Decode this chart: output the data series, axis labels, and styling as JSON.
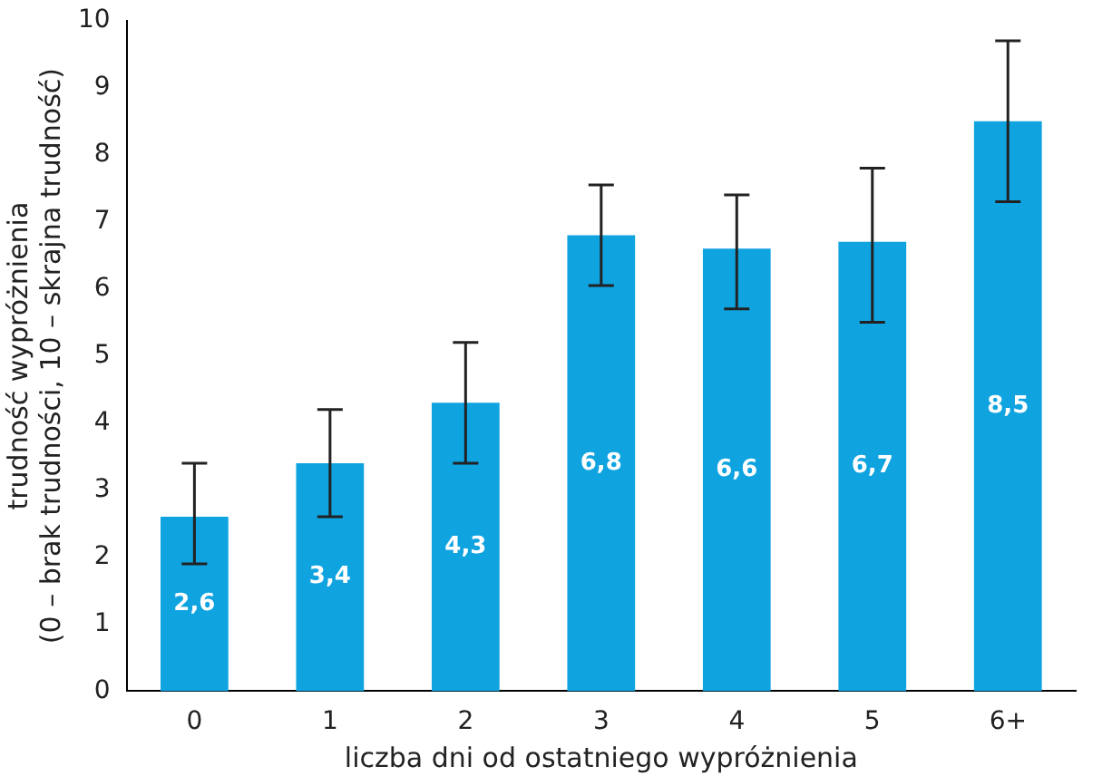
{
  "chart_data": {
    "type": "bar",
    "xlabel": "liczba dni od ostatniego wypróżnienia",
    "ylabel": "trudność wypróżnienia\n(0 – brak trudności, 10 – skrajna trudność)",
    "categories": [
      "0",
      "1",
      "2",
      "3",
      "4",
      "5",
      "6+"
    ],
    "values": [
      2.6,
      3.4,
      4.3,
      6.8,
      6.6,
      6.7,
      8.5
    ],
    "value_labels": [
      "2,6",
      "3,4",
      "4,3",
      "6,8",
      "6,6",
      "6,7",
      "8,5"
    ],
    "errors": [
      [
        1.9,
        3.4
      ],
      [
        2.6,
        4.2
      ],
      [
        3.4,
        5.2
      ],
      [
        6.05,
        7.55
      ],
      [
        5.7,
        7.4
      ],
      [
        5.5,
        7.8
      ],
      [
        7.3,
        9.7
      ]
    ],
    "color": "#0fa3e0",
    "ylim": [
      0,
      10
    ],
    "yticks": [
      0,
      1,
      2,
      3,
      4,
      5,
      6,
      7,
      8,
      9,
      10
    ],
    "grid": false,
    "legend": false
  }
}
